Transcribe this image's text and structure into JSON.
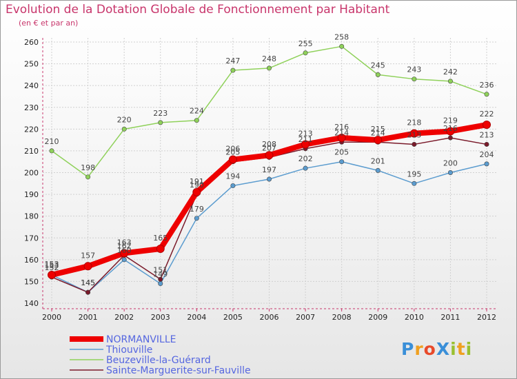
{
  "header": {
    "title": "Evolution de la Dotation Globale de Fonctionnement par Habitant",
    "subtitle": "(en € et par an)"
  },
  "logo": {
    "text": "ProXiti",
    "letters": [
      {
        "ch": "P",
        "color": "#3a8fd8"
      },
      {
        "ch": "r",
        "color": "#f0a020"
      },
      {
        "ch": "o",
        "color": "#e84a2a"
      },
      {
        "ch": "X",
        "color": "#3a8fd8"
      },
      {
        "ch": "i",
        "color": "#9ac030"
      },
      {
        "ch": "t",
        "color": "#f0a020"
      },
      {
        "ch": "i",
        "color": "#9ac030"
      }
    ]
  },
  "chart_data": {
    "type": "line",
    "title": "Evolution de la Dotation Globale de Fonctionnement par Habitant",
    "subtitle": "(en € et par an)",
    "xlabel": "",
    "ylabel": "",
    "categories": [
      "2000",
      "2001",
      "2002",
      "2003",
      "2004",
      "2005",
      "2006",
      "2007",
      "2008",
      "2009",
      "2010",
      "2011",
      "2012"
    ],
    "y_ticks": [
      140,
      150,
      160,
      170,
      180,
      190,
      200,
      210,
      220,
      230,
      240,
      250,
      260
    ],
    "ylim": [
      140,
      260
    ],
    "grid": true,
    "legend_position": "bottom-left",
    "series": [
      {
        "name": "Beuzeville-la-Guérard",
        "color": "#8fd15a",
        "values": [
          210,
          198,
          220,
          223,
          224,
          247,
          248,
          255,
          258,
          245,
          243,
          242,
          236
        ]
      },
      {
        "name": "Thiouville",
        "color": "#5b9ccf",
        "values": [
          153,
          145,
          160,
          149,
          179,
          194,
          197,
          202,
          205,
          201,
          195,
          200,
          204
        ]
      },
      {
        "name": "Sainte-Marguerite-sur-Fauville",
        "color": "#7a1a2a",
        "values": [
          152,
          145,
          162,
          151,
          190,
          205,
          207,
          211,
          214,
          214,
          213,
          216,
          213
        ]
      },
      {
        "name": "NORMANVILLE",
        "color": "#ee0000",
        "values": [
          153,
          157,
          163,
          165,
          191,
          206,
          208,
          213,
          216,
          215,
          218,
          219,
          222
        ]
      }
    ],
    "legend_order": [
      "NORMANVILLE",
      "Thiouville",
      "Beuzeville-la-Guérard",
      "Sainte-Marguerite-sur-Fauville"
    ]
  }
}
